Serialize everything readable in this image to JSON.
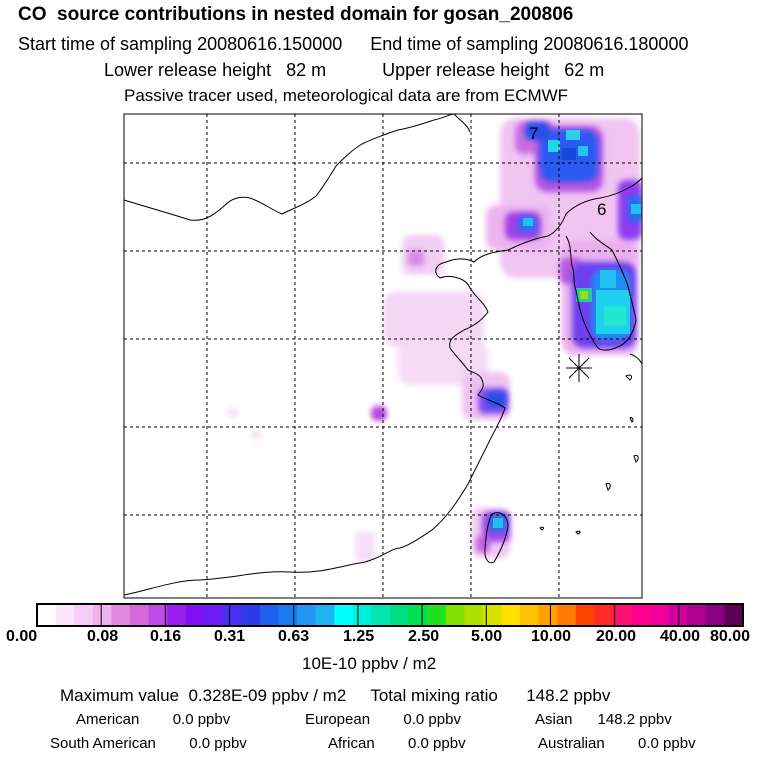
{
  "header": {
    "title": "CO  source contributions in nested domain for gosan_200806",
    "start_label": "Start time of sampling 20080616.150000",
    "end_label": "End time of sampling 20080616.180000",
    "lower_label": "Lower release height   82 m",
    "upper_label": "Upper release height   62 m",
    "note": "Passive tracer used, meteorological data are from ECMWF"
  },
  "map": {
    "contour_labels": [
      "7",
      "6"
    ],
    "receptor_marker": "station-star"
  },
  "colorbar": {
    "ticks": [
      "0.00",
      "0.08",
      "0.16",
      "0.31",
      "0.63",
      "1.25",
      "2.50",
      "5.00",
      "10.00",
      "20.00",
      "40.00",
      "80.00"
    ],
    "colors": [
      "#ffffff",
      "#fbe6fb",
      "#f6cdf6",
      "#f0b3f0",
      "#e28ae2",
      "#d46ad9",
      "#c04ce6",
      "#9a1fef",
      "#7f12f2",
      "#6a1ff0",
      "#4a2ef2",
      "#2f3ae8",
      "#1e5ff0",
      "#1a7af0",
      "#2196f3",
      "#20b3f2",
      "#00ffff",
      "#00f0dd",
      "#00e6b0",
      "#00dc80",
      "#00e050",
      "#20e020",
      "#80e000",
      "#b0e000",
      "#d8e000",
      "#ffe000",
      "#ffc000",
      "#ffa000",
      "#ff7a00",
      "#ff4400",
      "#ff2a2a",
      "#ff1070",
      "#ff0090",
      "#f0009a",
      "#d000a0",
      "#b00090",
      "#8a0080",
      "#5a0055"
    ],
    "unit": "10E-10 ppbv / m2"
  },
  "summary": {
    "max_text": "Maximum value  0.328E-09 ppbv / m2",
    "total_text": "Total mixing ratio      148.2 ppbv",
    "american": "American        0.0 ppbv",
    "european": "European        0.0 ppbv",
    "asian": "Asian      148.2 ppbv",
    "south_american": "South American        0.0 ppbv",
    "african": "African        0.0 ppbv",
    "australian": "Australian        0.0 ppbv"
  }
}
